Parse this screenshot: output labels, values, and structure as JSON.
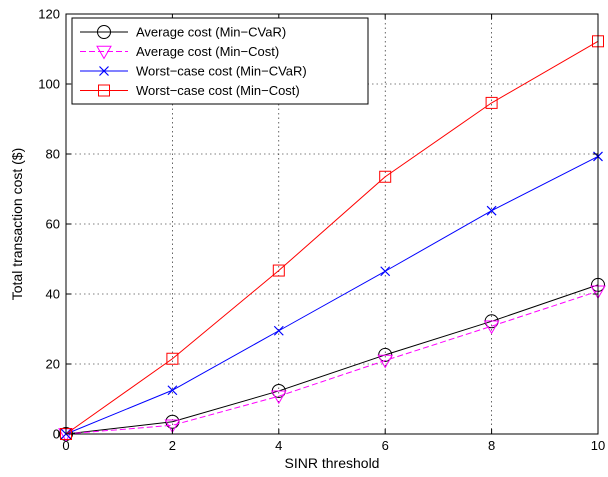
{
  "chart_data": {
    "type": "line",
    "title": "",
    "xlabel": "SINR threshold",
    "ylabel": "Total transaction cost ($)",
    "xlim": [
      0,
      10
    ],
    "ylim": [
      0,
      120
    ],
    "xticks": [
      "0",
      "2",
      "4",
      "6",
      "8",
      "10"
    ],
    "yticks": [
      "0",
      "20",
      "40",
      "60",
      "80",
      "100",
      "120"
    ],
    "grid": true,
    "legend_position": "top-left",
    "x": [
      0,
      2,
      4,
      6,
      8,
      10
    ],
    "series": [
      {
        "name": "Average cost (Min−CVaR)",
        "values": [
          0,
          3.5,
          12.3,
          22.6,
          32.2,
          42.6
        ],
        "color": "#000000",
        "line": "solid",
        "marker": "circle"
      },
      {
        "name": "Average cost (Min−Cost)",
        "values": [
          0,
          2.5,
          10.8,
          21.0,
          30.8,
          40.8
        ],
        "color": "#ff00ff",
        "line": "dashed",
        "marker": "triangle-down"
      },
      {
        "name": "Worst−case cost (Min−CVaR)",
        "values": [
          0,
          12.5,
          29.5,
          46.5,
          63.8,
          79.3
        ],
        "color": "#0000ff",
        "line": "solid",
        "marker": "x"
      },
      {
        "name": "Worst−case cost (Min−Cost)",
        "values": [
          0,
          21.5,
          46.7,
          73.5,
          94.6,
          112.2
        ],
        "color": "#ff0000",
        "line": "solid",
        "marker": "square"
      }
    ]
  }
}
